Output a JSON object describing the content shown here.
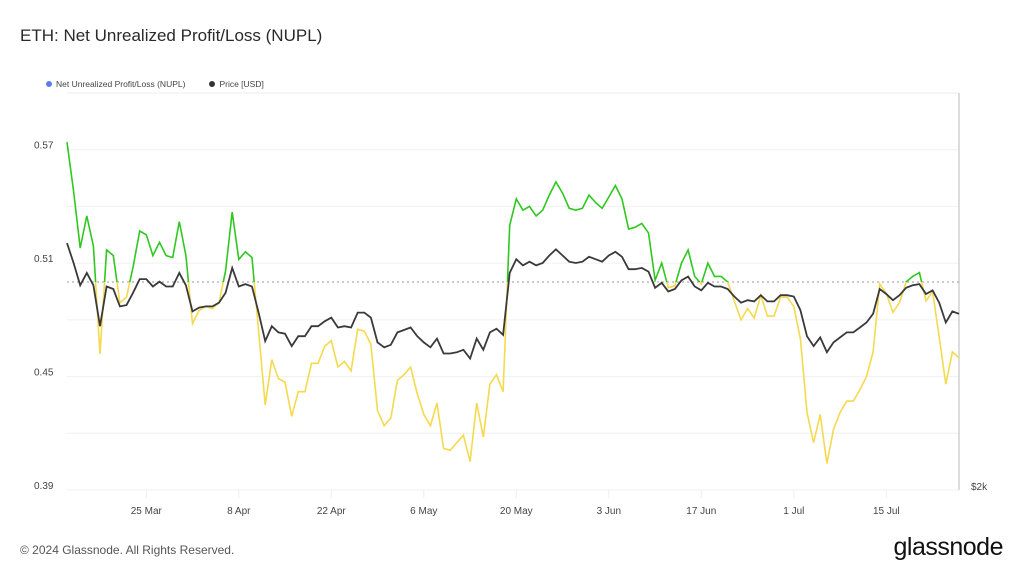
{
  "title": "ETH: Net Unrealized Profit/Loss (NUPL)",
  "footer": "© 2024 Glassnode. All Rights Reserved.",
  "logo": "glassnode",
  "legend": [
    {
      "label": "Net Unrealized Profit/Loss (NUPL)",
      "color": "#5b7cf5"
    },
    {
      "label": "Price [USD]",
      "color": "#333333"
    }
  ],
  "colors": {
    "nupl_above": "#2fc81f",
    "nupl_below": "#f5d94e",
    "price": "#3a3a3a",
    "threshold": "#9a9a9a"
  },
  "chart_data": {
    "type": "line",
    "title": "ETH: Net Unrealized Profit/Loss (NUPL)",
    "xlabel": "",
    "ylabel": "",
    "ylim": [
      0.39,
      0.6
    ],
    "y_ticks": [
      "0.57",
      "0.51",
      "0.45",
      "0.39"
    ],
    "y_grid": [
      0.39,
      0.42,
      0.45,
      0.48,
      0.51,
      0.54,
      0.57
    ],
    "y2_scale": "linear",
    "y2lim": [
      2000,
      5200
    ],
    "y2_ticks": [
      "$2k"
    ],
    "x_ticks": [
      "25 Mar",
      "8 Apr",
      "22 Apr",
      "6 May",
      "20 May",
      "3 Jun",
      "17 Jun",
      "1 Jul",
      "15 Jul"
    ],
    "threshold": 0.5,
    "grid": true,
    "legend_position": "top-left",
    "x": [
      "13 Mar",
      "14 Mar",
      "15 Mar",
      "16 Mar",
      "17 Mar",
      "18 Mar",
      "19 Mar",
      "20 Mar",
      "21 Mar",
      "22 Mar",
      "23 Mar",
      "24 Mar",
      "25 Mar",
      "26 Mar",
      "27 Mar",
      "28 Mar",
      "29 Mar",
      "30 Mar",
      "31 Mar",
      "1 Apr",
      "2 Apr",
      "3 Apr",
      "4 Apr",
      "5 Apr",
      "6 Apr",
      "7 Apr",
      "8 Apr",
      "9 Apr",
      "10 Apr",
      "11 Apr",
      "12 Apr",
      "13 Apr",
      "14 Apr",
      "15 Apr",
      "16 Apr",
      "17 Apr",
      "18 Apr",
      "19 Apr",
      "20 Apr",
      "21 Apr",
      "22 Apr",
      "23 Apr",
      "24 Apr",
      "25 Apr",
      "26 Apr",
      "27 Apr",
      "28 Apr",
      "29 Apr",
      "30 Apr",
      "1 May",
      "2 May",
      "3 May",
      "4 May",
      "5 May",
      "6 May",
      "7 May",
      "8 May",
      "9 May",
      "10 May",
      "11 May",
      "12 May",
      "13 May",
      "14 May",
      "15 May",
      "16 May",
      "17 May",
      "18 May",
      "19 May",
      "20 May",
      "21 May",
      "22 May",
      "23 May",
      "24 May",
      "25 May",
      "26 May",
      "27 May",
      "28 May",
      "29 May",
      "30 May",
      "31 May",
      "1 Jun",
      "2 Jun",
      "3 Jun",
      "4 Jun",
      "5 Jun",
      "6 Jun",
      "7 Jun",
      "8 Jun",
      "9 Jun",
      "10 Jun",
      "11 Jun",
      "12 Jun",
      "13 Jun",
      "14 Jun",
      "15 Jun",
      "16 Jun",
      "17 Jun",
      "18 Jun",
      "19 Jun",
      "20 Jun",
      "21 Jun",
      "22 Jun",
      "23 Jun",
      "24 Jun",
      "25 Jun",
      "26 Jun",
      "27 Jun",
      "28 Jun",
      "29 Jun",
      "30 Jun",
      "1 Jul",
      "2 Jul",
      "3 Jul",
      "4 Jul",
      "5 Jul",
      "6 Jul",
      "7 Jul",
      "8 Jul",
      "9 Jul",
      "10 Jul",
      "11 Jul",
      "12 Jul",
      "13 Jul",
      "14 Jul",
      "15 Jul",
      "16 Jul",
      "17 Jul",
      "18 Jul",
      "19 Jul",
      "20 Jul",
      "21 Jul",
      "22 Jul",
      "23 Jul",
      "24 Jul",
      "25 Jul",
      "26 Jul"
    ],
    "series": [
      {
        "name": "Net Unrealized Profit/Loss (NUPL)",
        "axis": "left",
        "values": [
          0.574,
          0.548,
          0.518,
          0.535,
          0.519,
          0.462,
          0.517,
          0.514,
          0.489,
          0.492,
          0.508,
          0.527,
          0.525,
          0.514,
          0.521,
          0.514,
          0.513,
          0.532,
          0.514,
          0.478,
          0.485,
          0.487,
          0.486,
          0.489,
          0.506,
          0.537,
          0.512,
          0.516,
          0.513,
          0.474,
          0.435,
          0.459,
          0.449,
          0.447,
          0.429,
          0.442,
          0.442,
          0.457,
          0.457,
          0.466,
          0.469,
          0.455,
          0.458,
          0.453,
          0.475,
          0.474,
          0.467,
          0.432,
          0.424,
          0.428,
          0.448,
          0.451,
          0.455,
          0.441,
          0.43,
          0.424,
          0.436,
          0.412,
          0.411,
          0.415,
          0.419,
          0.405,
          0.436,
          0.418,
          0.446,
          0.451,
          0.442,
          0.53,
          0.544,
          0.538,
          0.54,
          0.535,
          0.538,
          0.546,
          0.553,
          0.547,
          0.539,
          0.538,
          0.539,
          0.546,
          0.542,
          0.539,
          0.545,
          0.551,
          0.544,
          0.528,
          0.529,
          0.531,
          0.526,
          0.501,
          0.51,
          0.497,
          0.498,
          0.51,
          0.517,
          0.503,
          0.499,
          0.51,
          0.503,
          0.503,
          0.5,
          0.49,
          0.48,
          0.486,
          0.481,
          0.493,
          0.482,
          0.482,
          0.492,
          0.492,
          0.487,
          0.47,
          0.431,
          0.415,
          0.43,
          0.404,
          0.422,
          0.431,
          0.437,
          0.437,
          0.443,
          0.45,
          0.463,
          0.499,
          0.494,
          0.484,
          0.489,
          0.5,
          0.503,
          0.505,
          0.49,
          0.495,
          0.471,
          0.446,
          0.463,
          0.46
        ]
      },
      {
        "name": "Price [USD]",
        "axis": "right",
        "values": [
          3990,
          3830,
          3650,
          3750,
          3650,
          3320,
          3640,
          3620,
          3480,
          3490,
          3590,
          3700,
          3700,
          3640,
          3680,
          3640,
          3640,
          3750,
          3650,
          3440,
          3470,
          3480,
          3480,
          3510,
          3590,
          3790,
          3640,
          3660,
          3640,
          3430,
          3200,
          3320,
          3270,
          3260,
          3160,
          3240,
          3240,
          3320,
          3320,
          3360,
          3390,
          3310,
          3320,
          3310,
          3430,
          3430,
          3390,
          3190,
          3150,
          3170,
          3270,
          3290,
          3310,
          3240,
          3190,
          3150,
          3220,
          3100,
          3100,
          3110,
          3130,
          3060,
          3220,
          3130,
          3270,
          3300,
          3250,
          3750,
          3860,
          3810,
          3840,
          3810,
          3830,
          3890,
          3940,
          3890,
          3840,
          3830,
          3840,
          3880,
          3860,
          3840,
          3890,
          3920,
          3880,
          3780,
          3780,
          3790,
          3760,
          3630,
          3670,
          3600,
          3620,
          3690,
          3720,
          3640,
          3610,
          3670,
          3640,
          3640,
          3620,
          3560,
          3510,
          3530,
          3520,
          3570,
          3520,
          3520,
          3570,
          3570,
          3560,
          3450,
          3240,
          3160,
          3230,
          3110,
          3190,
          3230,
          3270,
          3270,
          3310,
          3350,
          3420,
          3620,
          3580,
          3530,
          3570,
          3630,
          3650,
          3660,
          3580,
          3610,
          3510,
          3350,
          3440,
          3420
        ]
      }
    ]
  }
}
